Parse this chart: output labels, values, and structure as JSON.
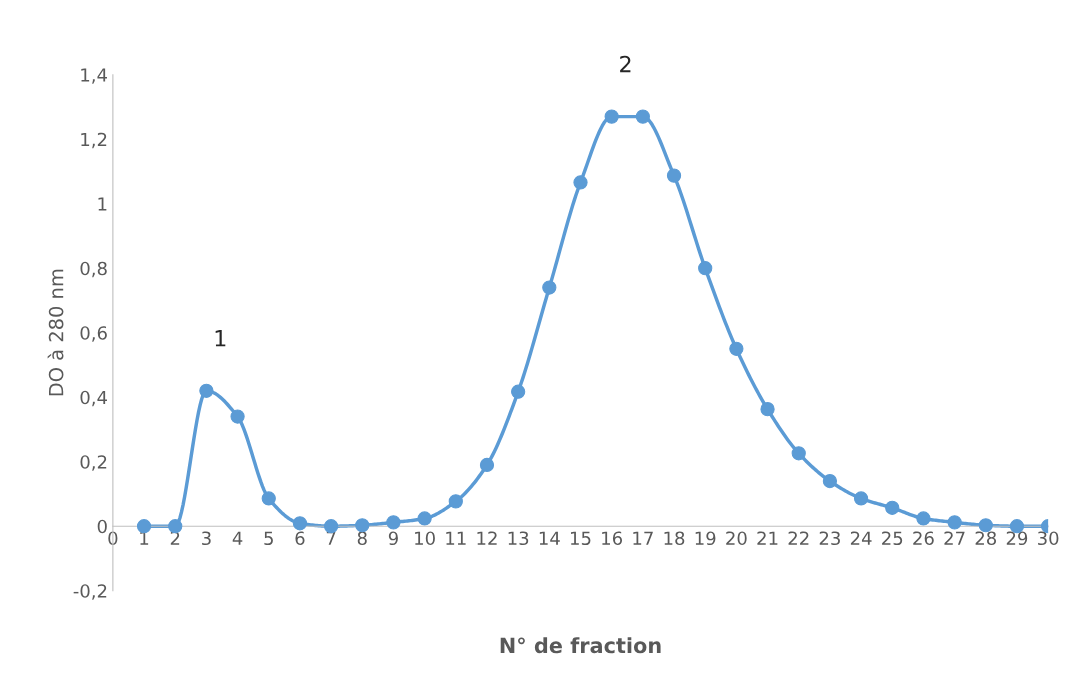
{
  "chart_data": {
    "type": "line",
    "xlabel": "N° de fraction",
    "ylabel": "DO à 280 nm",
    "x": [
      1,
      2,
      3,
      4,
      5,
      6,
      7,
      8,
      9,
      10,
      11,
      12,
      13,
      14,
      15,
      16,
      17,
      18,
      19,
      20,
      21,
      22,
      23,
      24,
      25,
      26,
      27,
      28,
      29,
      30
    ],
    "series": [
      {
        "color": "#5b9bd5",
        "values": [
          0,
          0,
          0.42,
          0.34,
          0.086,
          0.009,
          0,
          0.003,
          0.012,
          0.024,
          0.077,
          0.19,
          0.417,
          0.74,
          1.066,
          1.27,
          1.27,
          1.087,
          0.8,
          0.55,
          0.363,
          0.226,
          0.14,
          0.086,
          0.057,
          0.024,
          0.012,
          0.003,
          0,
          0
        ]
      }
    ],
    "xlim": [
      0,
      30
    ],
    "xticks": [
      0,
      1,
      2,
      3,
      4,
      5,
      6,
      7,
      8,
      9,
      10,
      11,
      12,
      13,
      14,
      15,
      16,
      17,
      18,
      19,
      20,
      21,
      22,
      23,
      24,
      25,
      26,
      27,
      28,
      29,
      30
    ],
    "ylim": [
      -0.2,
      1.4
    ],
    "yticks": [
      {
        "value": -0.2,
        "label": "-0,2"
      },
      0,
      {
        "value": 0.2,
        "label": "0,2"
      },
      {
        "value": 0.4,
        "label": "0,4"
      },
      {
        "value": 0.6,
        "label": "0,6"
      },
      {
        "value": 0.8,
        "label": "0,8"
      },
      1,
      {
        "value": 1.2,
        "label": "1,2"
      },
      {
        "value": 1.4,
        "label": "1,4"
      }
    ],
    "annotations": [
      {
        "text": "1",
        "x": 3,
        "y": 0.42
      },
      {
        "text": "2",
        "x": 16,
        "y": 1.27
      }
    ],
    "marker": "circle",
    "line_style": "solid",
    "grid": false,
    "legend": false
  }
}
